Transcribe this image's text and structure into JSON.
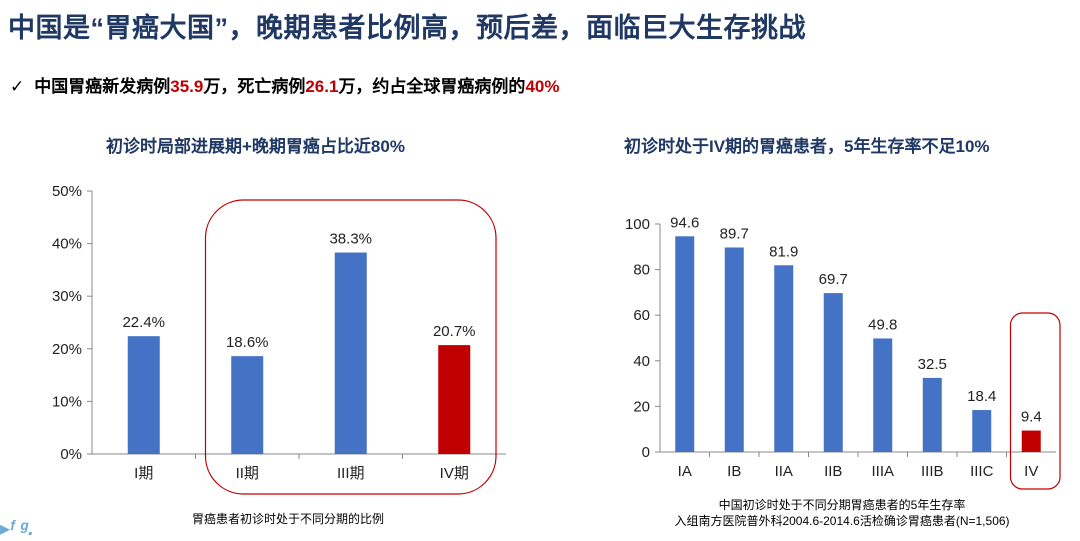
{
  "header": {
    "title": "中国是“胃癌大国”，晚期患者比例高，预后差，面临巨大生存挑战",
    "bullet": {
      "check": "✓",
      "t1": "中国胃癌新发病例",
      "v1": "35.9",
      "t2": "万，死亡病例",
      "v2": "26.1",
      "t3": "万，约占全球胃癌病例的",
      "v3": "40%"
    }
  },
  "colors": {
    "blue": "#4472c4",
    "red": "#c00000",
    "highlight_box": "#c00000",
    "title": "#1f3864"
  },
  "chart_data": [
    {
      "type": "bar",
      "title": "初诊时局部进展期+晚期胃癌占比近80%",
      "caption": "胃癌患者初诊时处于不同分期的比例",
      "categories": [
        "I期",
        "II期",
        "III期",
        "IV期"
      ],
      "values": [
        22.4,
        18.6,
        38.3,
        20.7
      ],
      "value_labels": [
        "22.4%",
        "18.6%",
        "38.3%",
        "20.7%"
      ],
      "bar_colors": [
        "#4472c4",
        "#4472c4",
        "#4472c4",
        "#c00000"
      ],
      "ylim": [
        0,
        50
      ],
      "yticks": [
        "0%",
        "10%",
        "20%",
        "30%",
        "40%",
        "50%"
      ],
      "highlighted": [
        "II期",
        "III期",
        "IV期"
      ]
    },
    {
      "type": "bar",
      "title": "初诊时处于IV期的胃癌患者，5年生存率不足10%",
      "caption_lines": [
        "中国初诊时处于不同分期胃癌患者的5年生存率",
        "入组南方医院普外科2004.6-2014.6活检确诊胃癌患者(N=1,506)"
      ],
      "categories": [
        "IA",
        "IB",
        "IIA",
        "IIB",
        "IIIA",
        "IIIB",
        "IIIC",
        "IV"
      ],
      "values": [
        94.6,
        89.7,
        81.9,
        69.7,
        49.8,
        32.5,
        18.4,
        9.4
      ],
      "value_labels": [
        "94.6",
        "89.7",
        "81.9",
        "69.7",
        "49.8",
        "32.5",
        "18.4",
        "9.4"
      ],
      "bar_colors": [
        "#4472c4",
        "#4472c4",
        "#4472c4",
        "#4472c4",
        "#4472c4",
        "#4472c4",
        "#4472c4",
        "#c00000"
      ],
      "ylim": [
        0,
        100
      ],
      "yticks": [
        "0",
        "20",
        "40",
        "60",
        "80",
        "100"
      ],
      "highlighted": [
        "IV"
      ]
    }
  ]
}
